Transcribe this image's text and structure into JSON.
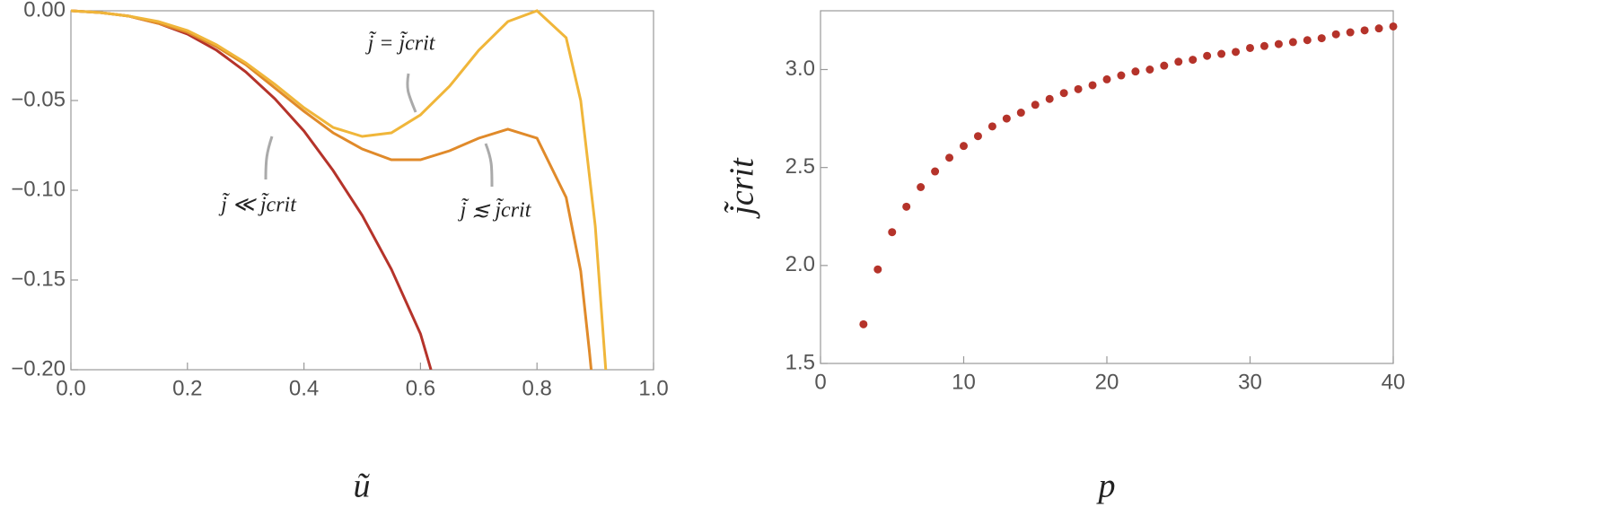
{
  "chart_data": [
    {
      "type": "line",
      "x_label": "ũ",
      "xlim": [
        0,
        1
      ],
      "ylim": [
        -0.2,
        0
      ],
      "xticks": [
        {
          "value": 0,
          "label": "0.0"
        },
        0.2,
        0.4,
        0.6,
        0.8,
        {
          "value": 1,
          "label": "1.0"
        }
      ],
      "yticks": [
        {
          "value": 0,
          "label": "0.00"
        },
        {
          "value": -0.05,
          "label": "−0.05"
        },
        {
          "value": -0.1,
          "label": "−0.10"
        },
        {
          "value": -0.15,
          "label": "−0.15"
        },
        {
          "value": -0.2,
          "label": "−0.20"
        }
      ],
      "annotations": [
        "j̃ = j̃crit",
        "j̃ ≪ j̃crit",
        "j̃ ≲ j̃crit"
      ],
      "series": [
        {
          "color": "#b5332a",
          "x": [
            0,
            0.05,
            0.1,
            0.15,
            0.2,
            0.25,
            0.3,
            0.35,
            0.4,
            0.45,
            0.5,
            0.55,
            0.6,
            0.618
          ],
          "values": [
            0,
            -0.001,
            -0.003,
            -0.007,
            -0.013,
            -0.022,
            -0.034,
            -0.049,
            -0.067,
            -0.089,
            -0.114,
            -0.144,
            -0.18,
            -0.2
          ]
        },
        {
          "color": "#e08a2a",
          "x": [
            0,
            0.05,
            0.1,
            0.15,
            0.2,
            0.25,
            0.3,
            0.35,
            0.4,
            0.45,
            0.5,
            0.55,
            0.6,
            0.65,
            0.7,
            0.75,
            0.8,
            0.85,
            0.875,
            0.89,
            0.893
          ],
          "values": [
            0,
            -0.001,
            -0.003,
            -0.007,
            -0.012,
            -0.02,
            -0.03,
            -0.043,
            -0.056,
            -0.068,
            -0.077,
            -0.083,
            -0.083,
            -0.078,
            -0.071,
            -0.066,
            -0.071,
            -0.104,
            -0.145,
            -0.19,
            -0.2
          ]
        },
        {
          "color": "#f0b63a",
          "x": [
            0,
            0.05,
            0.1,
            0.15,
            0.2,
            0.25,
            0.3,
            0.35,
            0.4,
            0.45,
            0.5,
            0.55,
            0.6,
            0.65,
            0.7,
            0.75,
            0.8,
            0.85,
            0.875,
            0.9,
            0.918
          ],
          "values": [
            0,
            -0.001,
            -0.003,
            -0.006,
            -0.011,
            -0.019,
            -0.029,
            -0.041,
            -0.054,
            -0.065,
            -0.07,
            -0.068,
            -0.058,
            -0.042,
            -0.022,
            -0.006,
            0,
            -0.015,
            -0.05,
            -0.12,
            -0.2
          ]
        }
      ]
    },
    {
      "type": "scatter",
      "x_label": "p",
      "y_label": "j̃crit",
      "color": "#b5332a",
      "xlim": [
        0,
        40
      ],
      "ylim": [
        1.5,
        3.3
      ],
      "xticks": [
        0,
        10,
        20,
        30,
        40
      ],
      "yticks": [
        1.5,
        {
          "value": 2,
          "label": "2.0"
        },
        2.5,
        {
          "value": 3,
          "label": "3.0"
        }
      ],
      "x": [
        3,
        4,
        5,
        6,
        7,
        8,
        9,
        10,
        11,
        12,
        13,
        14,
        15,
        16,
        17,
        18,
        19,
        20,
        21,
        22,
        23,
        24,
        25,
        26,
        27,
        28,
        29,
        30,
        31,
        32,
        33,
        34,
        35,
        36,
        37,
        38,
        39,
        40
      ],
      "values": [
        1.7,
        1.98,
        2.17,
        2.3,
        2.4,
        2.48,
        2.55,
        2.61,
        2.66,
        2.71,
        2.75,
        2.78,
        2.82,
        2.85,
        2.88,
        2.9,
        2.92,
        2.95,
        2.97,
        2.99,
        3.0,
        3.02,
        3.04,
        3.05,
        3.07,
        3.08,
        3.09,
        3.11,
        3.12,
        3.13,
        3.14,
        3.15,
        3.16,
        3.18,
        3.19,
        3.2,
        3.21,
        3.22
      ]
    }
  ]
}
